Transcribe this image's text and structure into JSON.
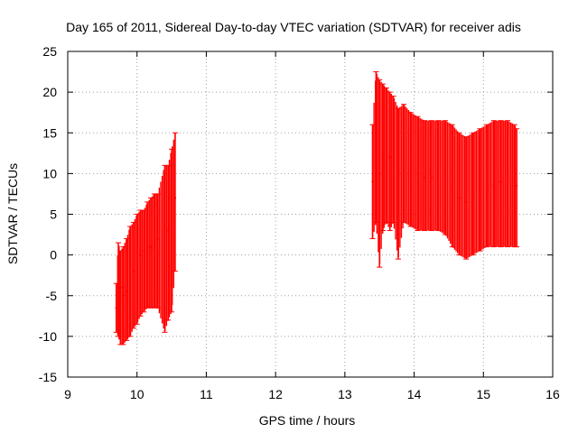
{
  "chart_data": {
    "type": "scatter",
    "title": "Day 165 of 2011, Sidereal Day-to-day VTEC variation (SDTVAR) for receiver adis",
    "xlabel": "GPS time / hours",
    "ylabel": "SDTVAR / TECUs",
    "xlim": [
      9,
      16
    ],
    "ylim": [
      -15,
      25
    ],
    "xticks": [
      "9",
      "10",
      "11",
      "12",
      "13",
      "14",
      "15",
      "16"
    ],
    "yticks": [
      "-15",
      "-10",
      "-5",
      "0",
      "5",
      "10",
      "15",
      "20",
      "25"
    ],
    "grid": true,
    "legend": "none",
    "error_bars": true,
    "series": [
      {
        "color": "#ff0000",
        "points": [
          {
            "x": 9.7,
            "y": -6.5,
            "lo": -9.5,
            "hi": -3.5
          },
          {
            "x": 9.73,
            "y": -3.0,
            "lo": -10.0,
            "hi": 1.5
          },
          {
            "x": 9.76,
            "y": -4.0,
            "lo": -11.0,
            "hi": 0.5
          },
          {
            "x": 9.8,
            "y": -5.0,
            "lo": -11.0,
            "hi": 1.0
          },
          {
            "x": 9.85,
            "y": -4.5,
            "lo": -10.5,
            "hi": 2.0
          },
          {
            "x": 9.9,
            "y": -3.0,
            "lo": -10.0,
            "hi": 3.5
          },
          {
            "x": 9.95,
            "y": -2.0,
            "lo": -9.0,
            "hi": 4.0
          },
          {
            "x": 10.0,
            "y": -1.0,
            "lo": -8.5,
            "hi": 5.0
          },
          {
            "x": 10.05,
            "y": 0.0,
            "lo": -7.5,
            "hi": 5.5
          },
          {
            "x": 10.1,
            "y": 0.5,
            "lo": -7.0,
            "hi": 5.5
          },
          {
            "x": 10.15,
            "y": 1.0,
            "lo": -6.5,
            "hi": 6.5
          },
          {
            "x": 10.2,
            "y": 1.0,
            "lo": -6.5,
            "hi": 7.0
          },
          {
            "x": 10.25,
            "y": 1.5,
            "lo": -6.5,
            "hi": 7.5
          },
          {
            "x": 10.3,
            "y": 2.0,
            "lo": -6.5,
            "hi": 7.5
          },
          {
            "x": 10.4,
            "y": 2.5,
            "lo": -9.5,
            "hi": 11.0
          },
          {
            "x": 10.45,
            "y": 3.0,
            "lo": -8.0,
            "hi": 11.0
          },
          {
            "x": 10.5,
            "y": 5.0,
            "lo": -7.0,
            "hi": 13.0
          },
          {
            "x": 10.55,
            "y": 7.0,
            "lo": -2.0,
            "hi": 15.0
          },
          {
            "x": 13.4,
            "y": 9.0,
            "lo": 2.0,
            "hi": 16.0
          },
          {
            "x": 13.45,
            "y": 13.0,
            "lo": 4.0,
            "hi": 22.5
          },
          {
            "x": 13.5,
            "y": 10.0,
            "lo": -1.5,
            "hi": 21.5
          },
          {
            "x": 13.55,
            "y": 12.0,
            "lo": 3.0,
            "hi": 21.0
          },
          {
            "x": 13.6,
            "y": 12.5,
            "lo": 4.0,
            "hi": 20.5
          },
          {
            "x": 13.65,
            "y": 12.0,
            "lo": 3.0,
            "hi": 20.0
          },
          {
            "x": 13.7,
            "y": 11.5,
            "lo": 4.0,
            "hi": 19.5
          },
          {
            "x": 13.77,
            "y": 10.0,
            "lo": -0.5,
            "hi": 18.0
          },
          {
            "x": 13.85,
            "y": 11.0,
            "lo": 4.0,
            "hi": 18.5
          },
          {
            "x": 13.95,
            "y": 10.5,
            "lo": 3.5,
            "hi": 17.5
          },
          {
            "x": 14.05,
            "y": 10.0,
            "lo": 3.0,
            "hi": 17.0
          },
          {
            "x": 14.15,
            "y": 9.5,
            "lo": 3.0,
            "hi": 16.5
          },
          {
            "x": 14.25,
            "y": 9.5,
            "lo": 3.0,
            "hi": 16.5
          },
          {
            "x": 14.35,
            "y": 9.5,
            "lo": 3.0,
            "hi": 16.5
          },
          {
            "x": 14.45,
            "y": 9.0,
            "lo": 2.5,
            "hi": 16.5
          },
          {
            "x": 14.55,
            "y": 8.0,
            "lo": 1.0,
            "hi": 16.0
          },
          {
            "x": 14.65,
            "y": 7.0,
            "lo": 0.0,
            "hi": 15.0
          },
          {
            "x": 14.75,
            "y": 6.5,
            "lo": -0.5,
            "hi": 14.5
          },
          {
            "x": 14.85,
            "y": 7.0,
            "lo": 0.0,
            "hi": 15.0
          },
          {
            "x": 14.95,
            "y": 7.5,
            "lo": 0.5,
            "hi": 15.5
          },
          {
            "x": 15.05,
            "y": 8.0,
            "lo": 1.0,
            "hi": 16.0
          },
          {
            "x": 15.15,
            "y": 8.5,
            "lo": 1.0,
            "hi": 16.5
          },
          {
            "x": 15.25,
            "y": 9.0,
            "lo": 1.0,
            "hi": 16.5
          },
          {
            "x": 15.35,
            "y": 9.0,
            "lo": 1.0,
            "hi": 16.5
          },
          {
            "x": 15.45,
            "y": 8.5,
            "lo": 1.0,
            "hi": 16.0
          },
          {
            "x": 15.48,
            "y": 8.5,
            "lo": 1.0,
            "hi": 15.5
          }
        ]
      }
    ]
  }
}
